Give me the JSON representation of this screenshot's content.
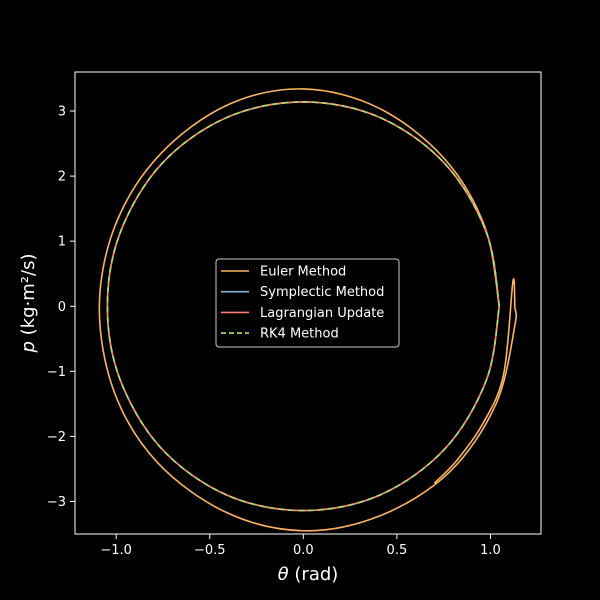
{
  "chart_data": {
    "type": "line",
    "title": "",
    "xlabel": "θ (rad)",
    "ylabel": "p (kg·m²/s)",
    "xlim": [
      -1.22,
      1.27
    ],
    "ylim": [
      -3.5,
      3.6
    ],
    "xticks": [
      -1.0,
      -0.5,
      0.0,
      0.5,
      1.0
    ],
    "xtick_labels": [
      "−1.0",
      "−0.5",
      "0.0",
      "0.5",
      "1.0"
    ],
    "yticks": [
      -3,
      -2,
      -1,
      0,
      1,
      2,
      3
    ],
    "ytick_labels": [
      "−3",
      "−2",
      "−1",
      "0",
      "1",
      "2",
      "3"
    ],
    "grid": false,
    "legend_position": "center",
    "background": "#000000",
    "series": [
      {
        "name": "Euler Method",
        "color": "#fdb462",
        "dash": "solid",
        "points": [
          [
            1.047,
            0.0
          ],
          [
            0.97,
            1.22
          ],
          [
            0.75,
            2.28
          ],
          [
            0.4,
            3.05
          ],
          [
            0.0,
            3.34
          ],
          [
            -0.4,
            3.1
          ],
          [
            -0.76,
            2.35
          ],
          [
            -1.0,
            1.28
          ],
          [
            -1.09,
            0.0
          ],
          [
            -1.01,
            -1.32
          ],
          [
            -0.78,
            -2.4
          ],
          [
            -0.41,
            -3.17
          ],
          [
            0.0,
            -3.45
          ],
          [
            0.41,
            -3.22
          ],
          [
            0.78,
            -2.55
          ],
          [
            1.03,
            -1.5
          ],
          [
            1.13,
            -0.3
          ],
          [
            1.13,
            0.0
          ],
          [
            1.12,
            0.38
          ],
          [
            1.07,
            -1.05
          ],
          [
            0.96,
            -1.8
          ],
          [
            0.82,
            -2.37
          ],
          [
            0.7,
            -2.72
          ]
        ]
      },
      {
        "name": "Symplectic Method",
        "color": "#80b1d3",
        "dash": "solid",
        "points": [
          [
            1.047,
            0.0
          ],
          [
            0.98,
            1.12
          ],
          [
            0.76,
            2.18
          ],
          [
            0.41,
            2.9
          ],
          [
            0.0,
            3.14
          ],
          [
            -0.41,
            2.9
          ],
          [
            -0.76,
            2.18
          ],
          [
            -0.98,
            1.12
          ],
          [
            -1.047,
            0.0
          ],
          [
            -0.98,
            -1.12
          ],
          [
            -0.76,
            -2.18
          ],
          [
            -0.41,
            -2.9
          ],
          [
            0.0,
            -3.14
          ],
          [
            0.41,
            -2.9
          ],
          [
            0.76,
            -2.18
          ],
          [
            0.98,
            -1.12
          ],
          [
            1.047,
            0.0
          ]
        ]
      },
      {
        "name": "Lagrangian Update",
        "color": "#fb8072",
        "dash": "solid",
        "points": [
          [
            1.047,
            0.0
          ],
          [
            0.98,
            1.12
          ],
          [
            0.76,
            2.18
          ],
          [
            0.41,
            2.9
          ],
          [
            0.0,
            3.14
          ],
          [
            -0.41,
            2.9
          ],
          [
            -0.76,
            2.18
          ],
          [
            -0.98,
            1.12
          ],
          [
            -1.047,
            0.0
          ],
          [
            -0.98,
            -1.12
          ],
          [
            -0.76,
            -2.18
          ],
          [
            -0.41,
            -2.9
          ],
          [
            0.0,
            -3.14
          ],
          [
            0.41,
            -2.9
          ],
          [
            0.76,
            -2.18
          ],
          [
            0.98,
            -1.12
          ],
          [
            1.047,
            0.0
          ]
        ]
      },
      {
        "name": "RK4 Method",
        "color": "#b3de69",
        "dash": "dashed",
        "points": [
          [
            1.047,
            0.0
          ],
          [
            0.98,
            1.12
          ],
          [
            0.76,
            2.18
          ],
          [
            0.41,
            2.9
          ],
          [
            0.0,
            3.14
          ],
          [
            -0.41,
            2.9
          ],
          [
            -0.76,
            2.18
          ],
          [
            -0.98,
            1.12
          ],
          [
            -1.047,
            0.0
          ],
          [
            -0.98,
            -1.12
          ],
          [
            -0.76,
            -2.18
          ],
          [
            -0.41,
            -2.9
          ],
          [
            0.0,
            -3.14
          ],
          [
            0.41,
            -2.9
          ],
          [
            0.76,
            -2.18
          ],
          [
            0.98,
            -1.12
          ],
          [
            1.047,
            0.0
          ]
        ]
      }
    ]
  }
}
